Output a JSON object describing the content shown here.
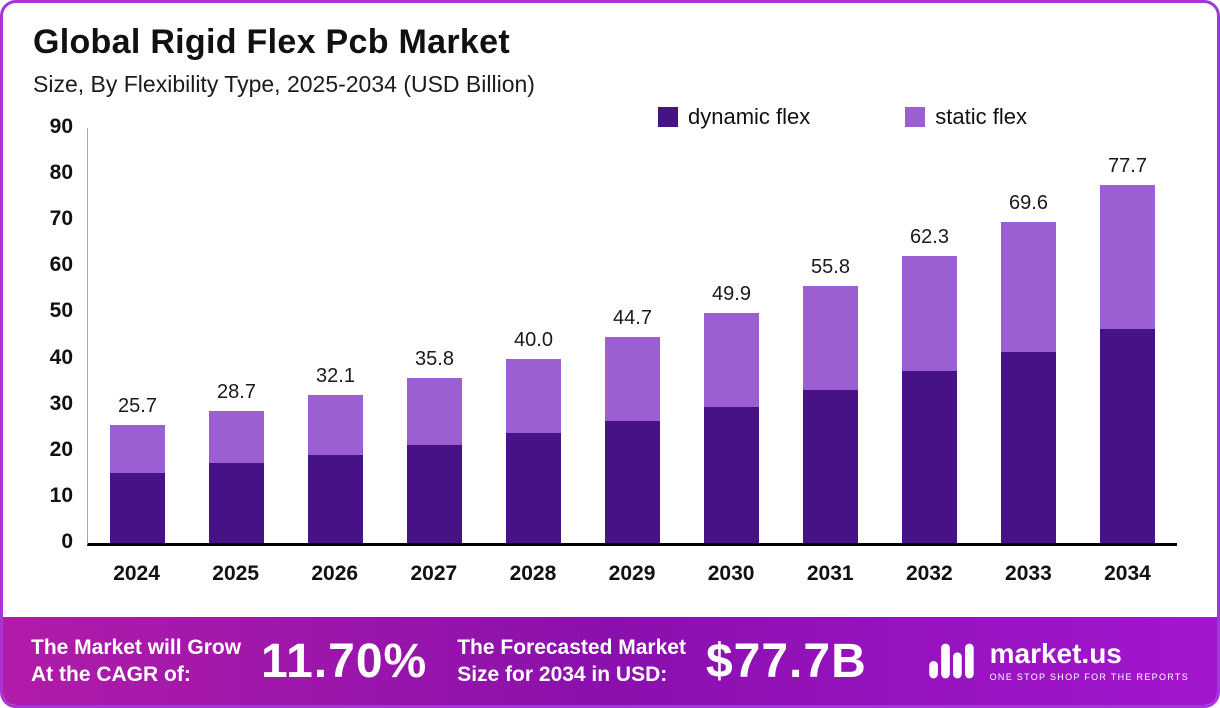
{
  "header": {
    "title": "Global Rigid Flex Pcb Market",
    "subtitle": "Size, By Flexibility Type, 2025-2034 (USD Billion)"
  },
  "colors": {
    "bar_dynamic": "#471285",
    "bar_static": "#9c5fd2",
    "frame_border": "#a435d8",
    "footer_gradient_start": "#b11ca9",
    "footer_gradient_mid": "#8a10ad",
    "footer_gradient_end": "#a316cf"
  },
  "chart_data": {
    "type": "bar",
    "stacked": true,
    "title": "Global Rigid Flex Pcb Market Size, By Flexibility Type, 2025-2034 (USD Billion)",
    "categories": [
      "2024",
      "2025",
      "2026",
      "2027",
      "2028",
      "2029",
      "2030",
      "2031",
      "2032",
      "2033",
      "2034"
    ],
    "series": [
      {
        "name": "dynamic flex",
        "color": "#471285",
        "values": [
          15.2,
          17.3,
          19.1,
          21.3,
          23.9,
          26.5,
          29.5,
          33.2,
          37.3,
          41.4,
          46.4
        ]
      },
      {
        "name": "static flex",
        "color": "#9c5fd2",
        "values": [
          10.5,
          11.4,
          13.0,
          14.5,
          16.1,
          18.2,
          20.4,
          22.6,
          25.0,
          28.2,
          31.3
        ]
      }
    ],
    "totals": [
      25.7,
      28.7,
      32.1,
      35.8,
      40.0,
      44.7,
      49.9,
      55.8,
      62.3,
      69.6,
      77.7
    ],
    "total_labels": [
      "25.7",
      "28.7",
      "32.1",
      "35.8",
      "40.0",
      "44.7",
      "49.9",
      "55.8",
      "62.3",
      "69.6",
      "77.7"
    ],
    "xlabel": "",
    "ylabel": "",
    "ylim": [
      0,
      90
    ],
    "yticks": [
      90,
      80,
      70,
      60,
      50,
      40,
      30,
      20,
      10,
      0
    ],
    "grid": false,
    "legend_position": "top"
  },
  "footer": {
    "cagr_label_line1": "The Market will Grow",
    "cagr_label_line2": "At the CAGR of:",
    "cagr_value": "11.70%",
    "forecast_label_line1": "The Forecasted Market",
    "forecast_label_line2": "Size for 2034 in USD:",
    "forecast_value": "$77.7B",
    "logo_text": "market.us",
    "logo_tagline": "ONE STOP SHOP FOR THE REPORTS"
  }
}
